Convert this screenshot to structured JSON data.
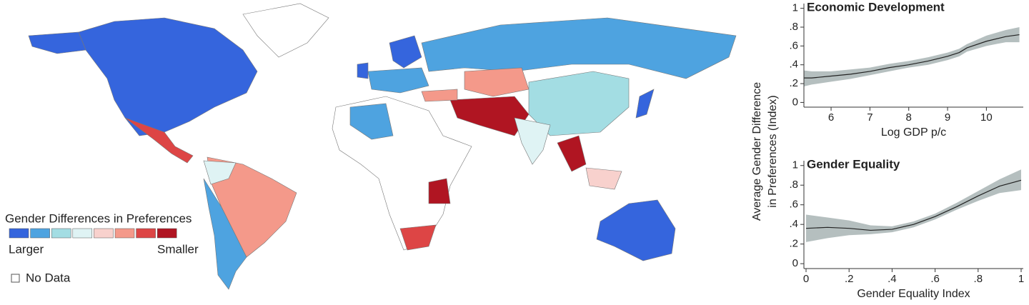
{
  "map": {
    "legend_title": "Gender Differences in Preferences",
    "legend_colors": [
      "#3565dd",
      "#4ea3e0",
      "#a3dde3",
      "#dff3f4",
      "#f8d1cd",
      "#f4998a",
      "#dd4545",
      "#b01522"
    ],
    "legend_low": "Larger",
    "legend_high": "Smaller",
    "no_data": "No Data"
  },
  "y_axis_label_lines": [
    "Average Gender Difference",
    "in Preferences (Index)"
  ],
  "chart_data": [
    {
      "type": "line",
      "title": "Economic Development",
      "xlabel": "Log GDP p/c",
      "x": [
        5.3,
        5.5,
        6,
        6.5,
        7,
        7.5,
        8,
        8.5,
        9,
        9.3,
        9.5,
        10,
        10.5,
        10.85
      ],
      "series": [
        {
          "color": "#222222",
          "values": [
            0.26,
            0.26,
            0.28,
            0.3,
            0.33,
            0.37,
            0.4,
            0.44,
            0.49,
            0.53,
            0.58,
            0.65,
            0.7,
            0.72
          ]
        }
      ],
      "band": {
        "color": "#b5bfbf",
        "lower": [
          0.17,
          0.19,
          0.22,
          0.25,
          0.29,
          0.33,
          0.37,
          0.4,
          0.45,
          0.49,
          0.54,
          0.6,
          0.64,
          0.64
        ],
        "upper": [
          0.34,
          0.33,
          0.33,
          0.35,
          0.37,
          0.41,
          0.44,
          0.48,
          0.53,
          0.57,
          0.62,
          0.71,
          0.77,
          0.8
        ]
      },
      "xlim": [
        5.3,
        10.95
      ],
      "xticks": [
        6,
        7,
        8,
        9,
        10
      ],
      "ylim": [
        -0.05,
        1.02
      ],
      "yticks": [
        0,
        {
          "value": 0.2,
          "label": ".2"
        },
        {
          "value": 0.4,
          "label": ".4"
        },
        {
          "value": 0.6,
          "label": ".6"
        },
        {
          "value": 0.8,
          "label": ".8"
        },
        1
      ]
    },
    {
      "type": "line",
      "title": "Gender Equality",
      "xlabel": "Gender Equality Index",
      "x": [
        0,
        0.1,
        0.2,
        0.3,
        0.4,
        0.5,
        0.6,
        0.7,
        0.8,
        0.9,
        1
      ],
      "series": [
        {
          "color": "#222222",
          "values": [
            0.36,
            0.37,
            0.36,
            0.34,
            0.35,
            0.4,
            0.48,
            0.58,
            0.69,
            0.79,
            0.85
          ]
        }
      ],
      "band": {
        "color": "#b5bfbf",
        "lower": [
          0.22,
          0.26,
          0.29,
          0.3,
          0.32,
          0.37,
          0.45,
          0.55,
          0.64,
          0.72,
          0.75
        ],
        "upper": [
          0.5,
          0.47,
          0.44,
          0.39,
          0.38,
          0.43,
          0.51,
          0.62,
          0.74,
          0.86,
          0.96
        ]
      },
      "xlim": [
        -0.01,
        1.01
      ],
      "xticks": [
        0,
        {
          "value": 0.2,
          "label": ".2"
        },
        {
          "value": 0.4,
          "label": ".4"
        },
        {
          "value": 0.6,
          "label": ".6"
        },
        {
          "value": 0.8,
          "label": ".8"
        },
        1
      ],
      "ylim": [
        -0.05,
        1.02
      ],
      "yticks": [
        0,
        {
          "value": 0.2,
          "label": ".2"
        },
        {
          "value": 0.4,
          "label": ".4"
        },
        {
          "value": 0.6,
          "label": ".6"
        },
        {
          "value": 0.8,
          "label": ".8"
        },
        1
      ]
    }
  ]
}
